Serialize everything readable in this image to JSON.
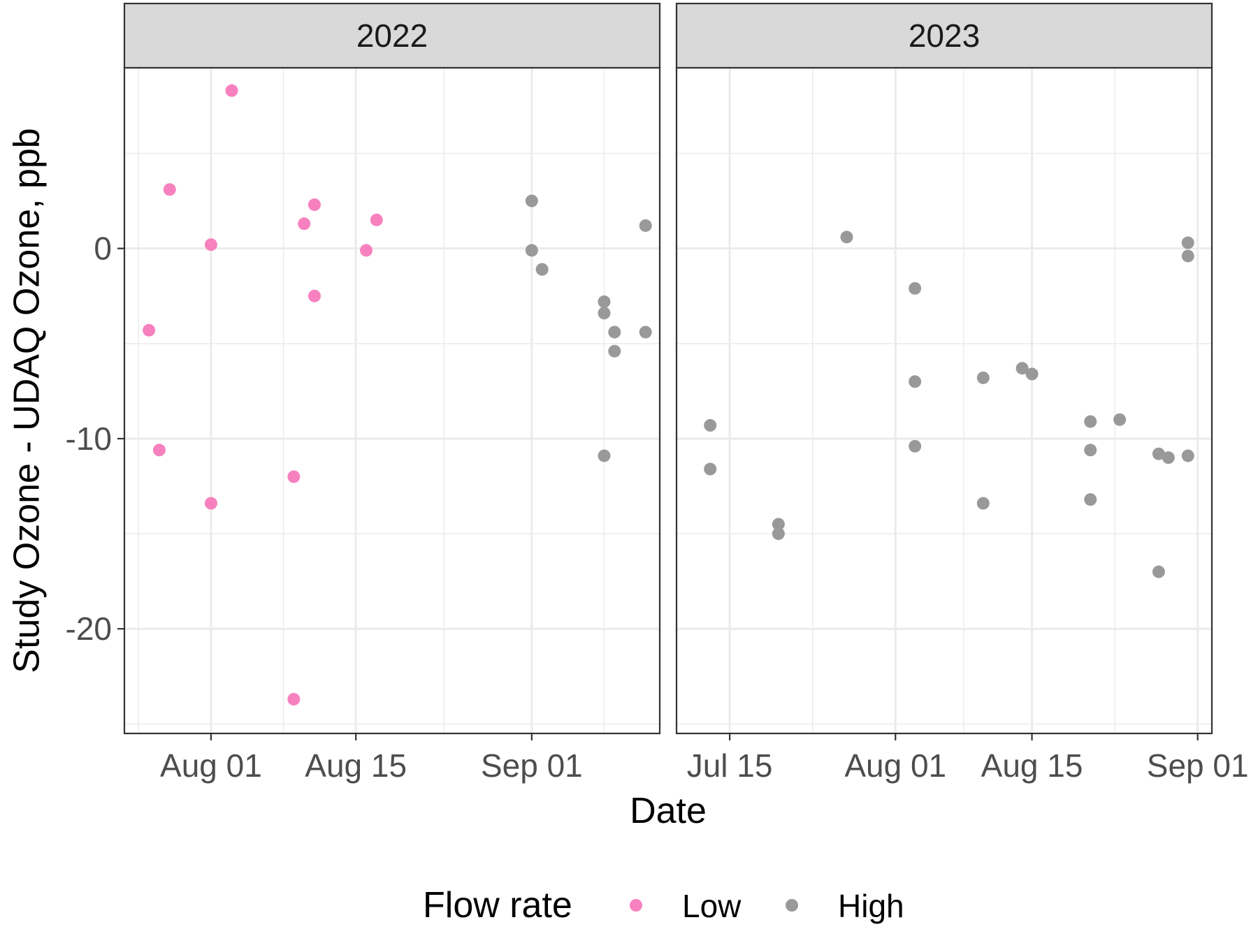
{
  "chart_data": {
    "type": "scatter",
    "xlabel": "Date",
    "ylabel": "Study Ozone - UDAQ Ozone, ppb",
    "ylim": [
      -25.5,
      9.5
    ],
    "y_ticks": [
      0,
      -10,
      -20
    ],
    "y_tick_labels": [
      "0",
      "-10",
      "-20"
    ],
    "grid": true,
    "legend": {
      "title": "Flow rate",
      "position": "bottom",
      "entries": [
        {
          "name": "Low",
          "color": "#f781bf"
        },
        {
          "name": "High",
          "color": "#999999"
        }
      ]
    },
    "panels": [
      {
        "title": "2022",
        "xlim": [
          "2022-07-25",
          "2022-09-12"
        ],
        "x_ticks": [
          "2022-08-01",
          "2022-08-15",
          "2022-09-01"
        ],
        "x_tick_labels": [
          "Aug 01",
          "Aug 15",
          "Sep 01"
        ],
        "series": [
          {
            "name": "Low",
            "color": "#f781bf",
            "points": [
              [
                "2022-07-26",
                -4.3
              ],
              [
                "2022-07-27",
                -10.6
              ],
              [
                "2022-07-28",
                3.1
              ],
              [
                "2022-08-01",
                0.2
              ],
              [
                "2022-08-01",
                -13.4
              ],
              [
                "2022-08-03",
                8.3
              ],
              [
                "2022-08-09",
                -12.0
              ],
              [
                "2022-08-09",
                -23.7
              ],
              [
                "2022-08-10",
                1.3
              ],
              [
                "2022-08-11",
                2.3
              ],
              [
                "2022-08-11",
                -2.5
              ],
              [
                "2022-08-16",
                -0.1
              ],
              [
                "2022-08-17",
                1.5
              ]
            ]
          },
          {
            "name": "High",
            "color": "#999999",
            "points": [
              [
                "2022-09-01",
                2.5
              ],
              [
                "2022-09-01",
                -0.1
              ],
              [
                "2022-09-02",
                -1.1
              ],
              [
                "2022-09-08",
                -2.8
              ],
              [
                "2022-09-08",
                -3.4
              ],
              [
                "2022-09-08",
                -10.9
              ],
              [
                "2022-09-09",
                -4.4
              ],
              [
                "2022-09-09",
                -5.4
              ],
              [
                "2022-09-12",
                1.2
              ],
              [
                "2022-09-12",
                -4.4
              ]
            ]
          }
        ]
      },
      {
        "title": "2023",
        "xlim": [
          "2023-07-11",
          "2023-09-01"
        ],
        "x_ticks": [
          "2023-07-15",
          "2023-08-01",
          "2023-08-15",
          "2023-09-01"
        ],
        "x_tick_labels": [
          "Jul 15",
          "Aug 01",
          "Aug 15",
          "Sep 01"
        ],
        "series": [
          {
            "name": "High",
            "color": "#999999",
            "points": [
              [
                "2023-07-13",
                -9.3
              ],
              [
                "2023-07-13",
                -11.6
              ],
              [
                "2023-07-20",
                -14.5
              ],
              [
                "2023-07-20",
                -15.0
              ],
              [
                "2023-07-27",
                0.6
              ],
              [
                "2023-08-03",
                -2.1
              ],
              [
                "2023-08-03",
                -7.0
              ],
              [
                "2023-08-03",
                -10.4
              ],
              [
                "2023-08-10",
                -6.8
              ],
              [
                "2023-08-10",
                -13.4
              ],
              [
                "2023-08-14",
                -6.3
              ],
              [
                "2023-08-15",
                -6.6
              ],
              [
                "2023-08-21",
                -9.1
              ],
              [
                "2023-08-21",
                -10.6
              ],
              [
                "2023-08-21",
                -13.2
              ],
              [
                "2023-08-24",
                -9.0
              ],
              [
                "2023-08-28",
                -10.8
              ],
              [
                "2023-08-28",
                -17.0
              ],
              [
                "2023-08-29",
                -11.0
              ],
              [
                "2023-08-31",
                -10.9
              ],
              [
                "2023-08-31",
                0.3
              ],
              [
                "2023-08-31",
                -0.4
              ]
            ]
          }
        ]
      }
    ]
  }
}
